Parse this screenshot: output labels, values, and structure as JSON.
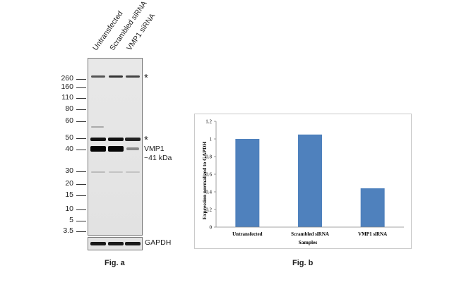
{
  "figure_a": {
    "caption": "Fig. a",
    "lanes": [
      "Untransfected",
      "Scrambled siRNA",
      "VMP1 siRNA"
    ],
    "mw_markers": [
      "260",
      "160",
      "110",
      "80",
      "60",
      "50",
      "40",
      "30",
      "20",
      "15",
      "10",
      "5",
      "3.5"
    ],
    "asterisk": "*",
    "band_label_line1": "VMP1",
    "band_label_line2": "~41 kDa",
    "loading_control": "GAPDH"
  },
  "figure_b": {
    "caption": "Fig. b"
  },
  "chart_data": {
    "type": "bar",
    "categories": [
      "Untransfected",
      "Scrambled siRNA",
      "VMP1 siRNA"
    ],
    "values": [
      1.0,
      1.05,
      0.44
    ],
    "xlabel": "Samples",
    "ylabel": "Expression normalized to GAPDH",
    "ylim": [
      0,
      1.2
    ],
    "yticks": [
      "0",
      "0.2",
      "0.4",
      "0.6",
      "0.8",
      "1",
      "1.2"
    ],
    "bar_color": "#4f81bd",
    "grid": false,
    "legend": false
  }
}
